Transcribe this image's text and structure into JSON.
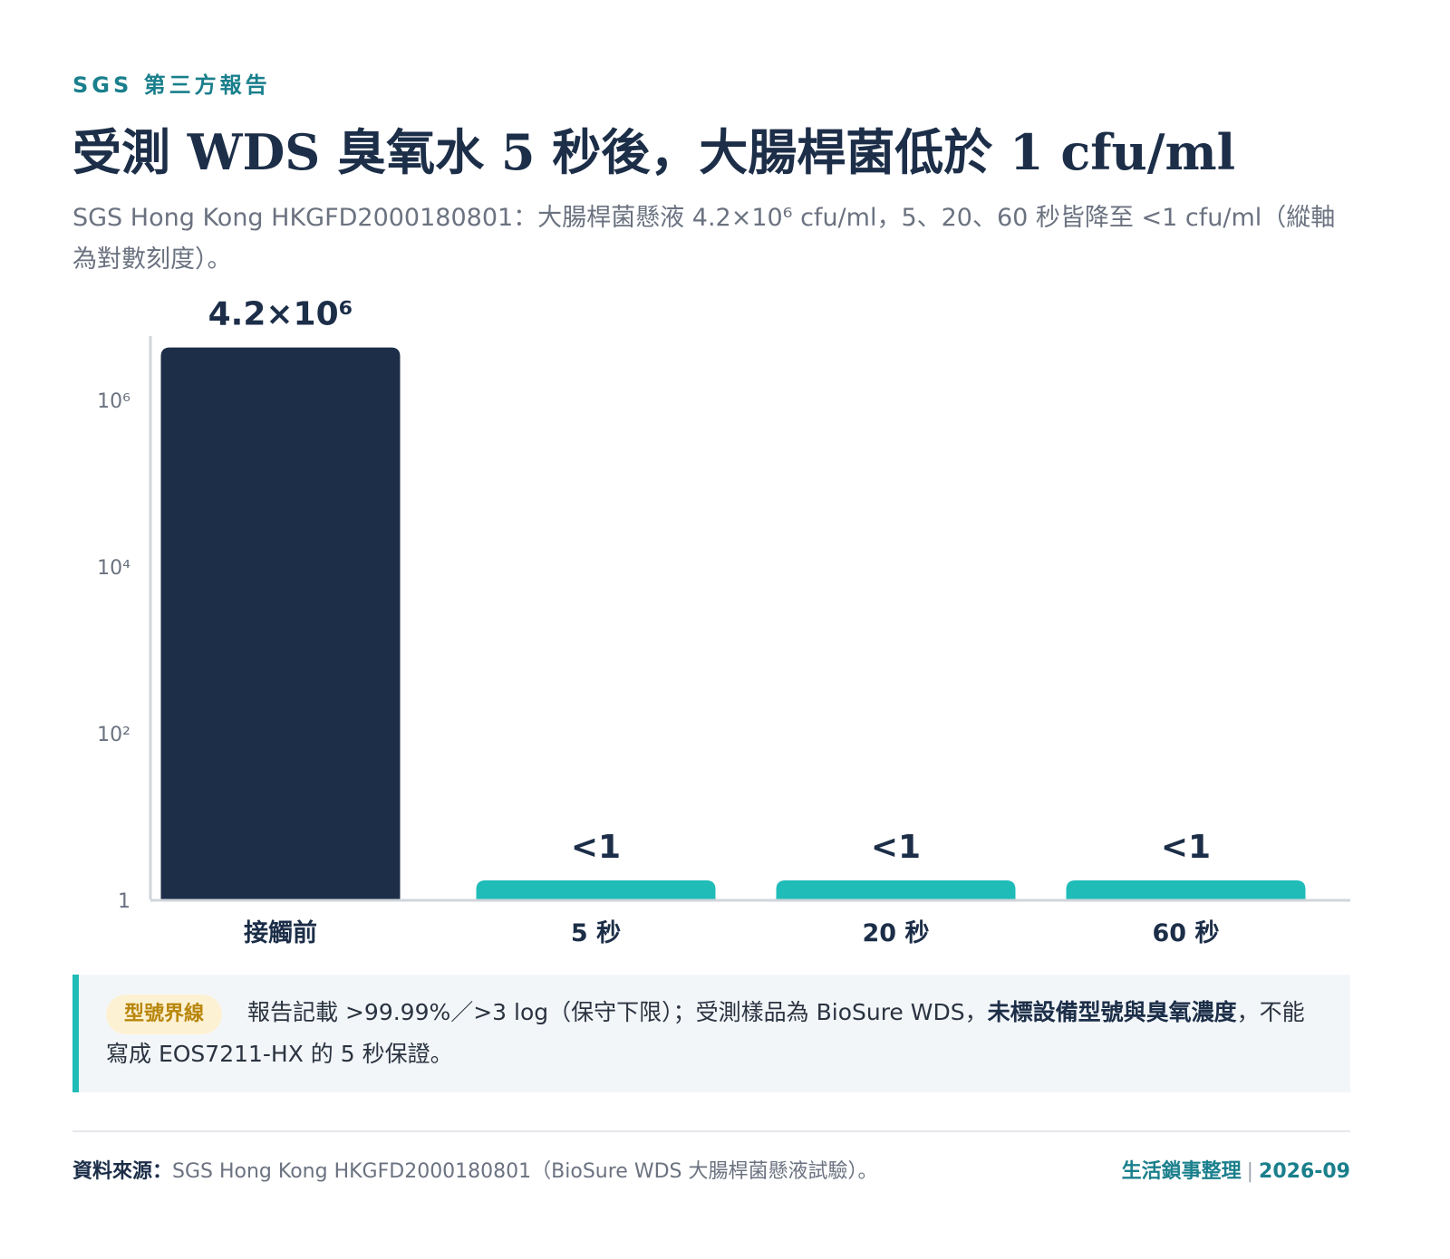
{
  "header": {
    "eyebrow": "SGS 第三方報告",
    "title": "受測 WDS 臭氧水 5 秒後，大腸桿菌低於 1 cfu/ml",
    "subtitle": "SGS Hong Kong HKGFD2000180801：大腸桿菌懸液 4.2×10⁶ cfu/ml，5、20、60 秒皆降至 <1 cfu/ml（縱軸為對數刻度）。"
  },
  "chart_data": {
    "type": "bar",
    "categories": [
      "接觸前",
      "5 秒",
      "20 秒",
      "60 秒"
    ],
    "values": [
      4200000,
      1,
      1,
      1
    ],
    "data_labels": [
      "4.2×10⁶",
      "<1",
      "<1",
      "<1"
    ],
    "yscale": "log",
    "ylim": [
      1,
      10000000
    ],
    "yticks": [
      1,
      100,
      10000,
      1000000
    ],
    "ytick_labels": [
      "1",
      "10²",
      "10⁴",
      "10⁶"
    ],
    "grid": false,
    "colors": [
      "#1c2e48",
      "#1fbcb8",
      "#1fbcb8",
      "#1fbcb8"
    ]
  },
  "note": {
    "tag": "型號界線",
    "text_before": "報告記載 >99.99%／>3 log（保守下限）；受測樣品為 BioSure WDS，",
    "text_bold": "未標設備型號與臭氧濃度",
    "text_after": "，不能寫成 EOS7211-HX 的 5 秒保證。"
  },
  "footer": {
    "source_label": "資料來源：",
    "source_text": "SGS Hong Kong HKGFD2000180801（BioSure WDS 大腸桿菌懸液試驗）。",
    "credit": "生活鎖事整理",
    "separator": "|",
    "date": "2026-09"
  }
}
